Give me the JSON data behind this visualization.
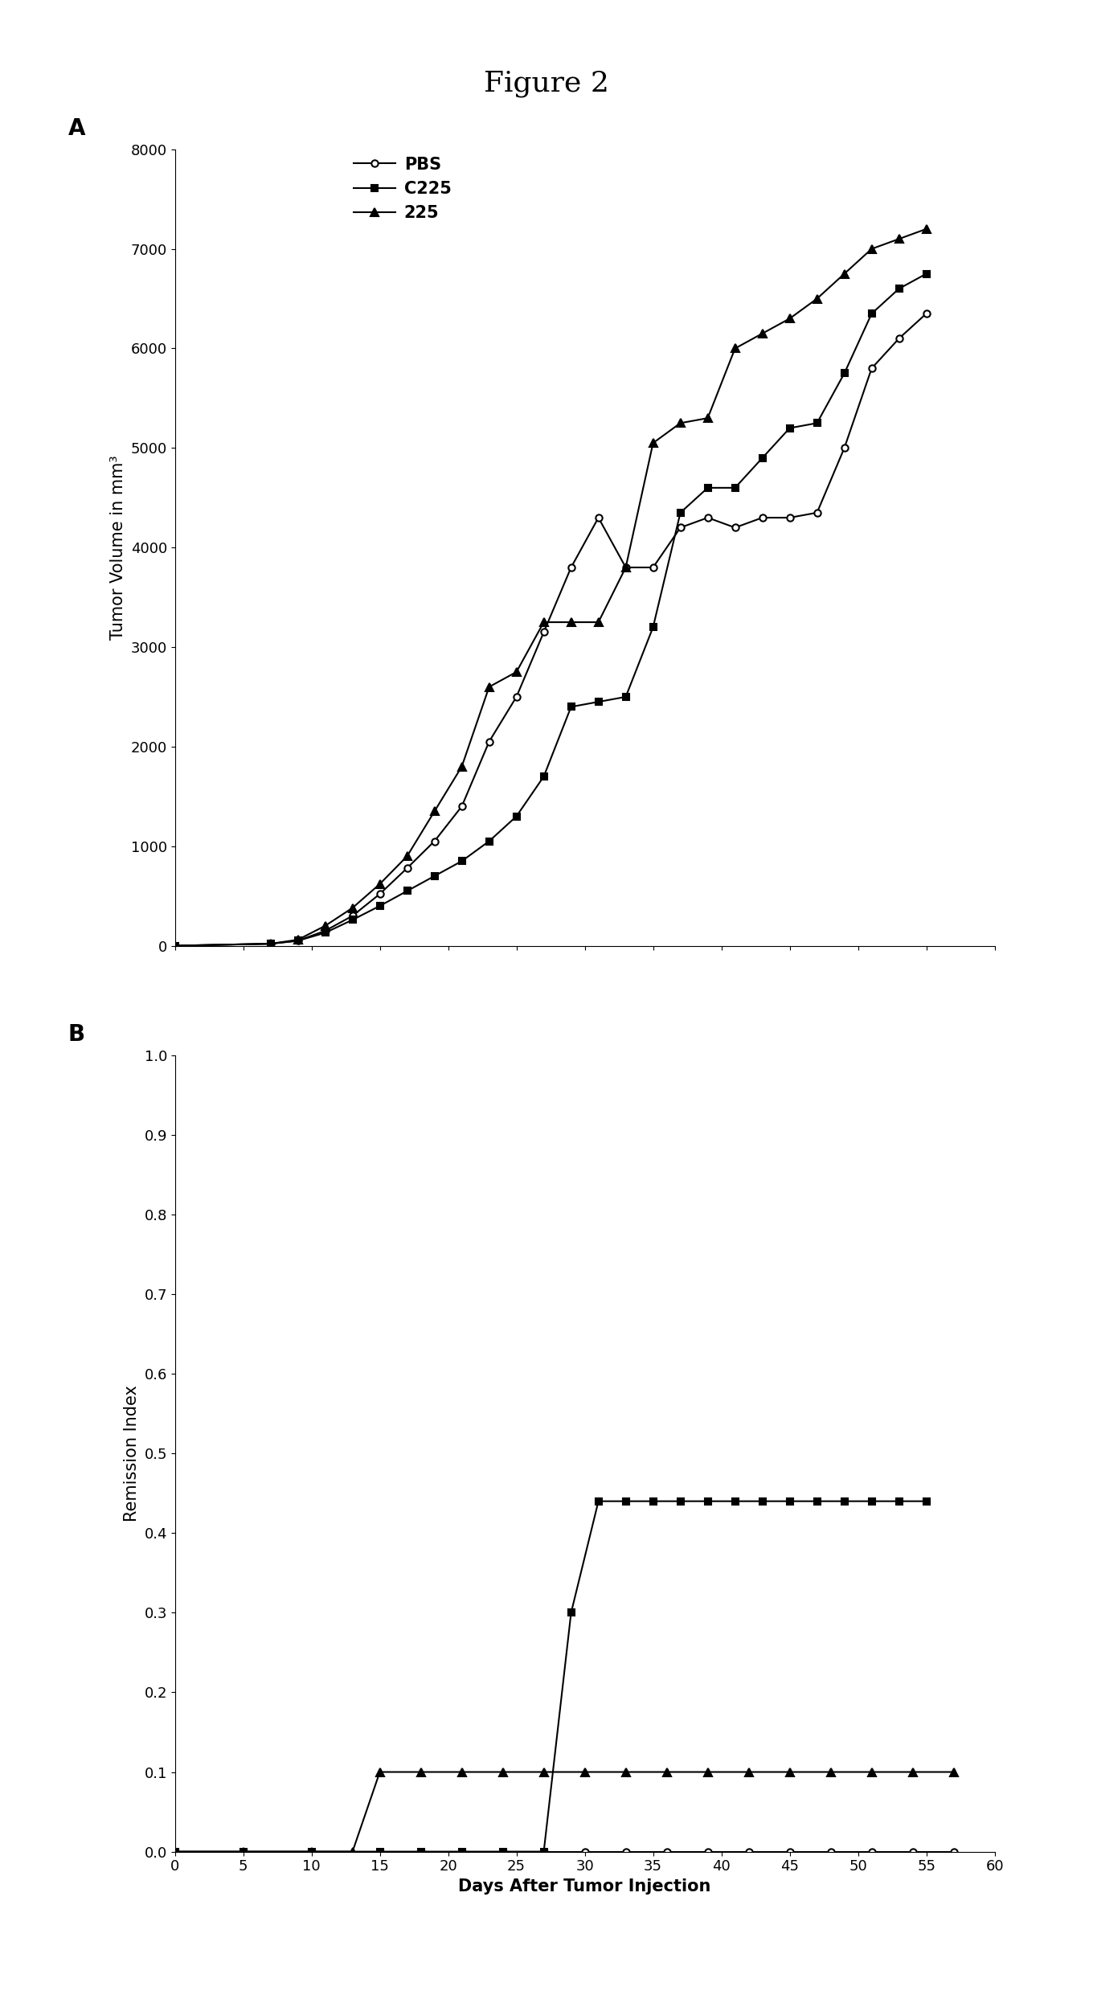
{
  "title": "Figure 2",
  "title_fontsize": 26,
  "title_fontfamily": "serif",
  "panel_A_label": "A",
  "panel_B_label": "B",
  "pbs_x": [
    0,
    7,
    9,
    11,
    13,
    15,
    17,
    19,
    21,
    23,
    25,
    27,
    29,
    31,
    33,
    35,
    37,
    39,
    41,
    43,
    45,
    47,
    49,
    51,
    53,
    55
  ],
  "pbs_y": [
    0,
    20,
    50,
    150,
    300,
    520,
    780,
    1050,
    1400,
    2050,
    2500,
    3150,
    3800,
    4300,
    3800,
    3800,
    4200,
    4300,
    4200,
    4300,
    4300,
    4350,
    5000,
    5800,
    6100,
    6350
  ],
  "c225_x": [
    0,
    7,
    9,
    11,
    13,
    15,
    17,
    19,
    21,
    23,
    25,
    27,
    29,
    31,
    33,
    35,
    37,
    39,
    41,
    43,
    45,
    47,
    49,
    51,
    53,
    55
  ],
  "c225_y": [
    0,
    20,
    50,
    130,
    260,
    400,
    550,
    700,
    850,
    1050,
    1300,
    1700,
    2400,
    2450,
    2500,
    3200,
    4350,
    4600,
    4600,
    4900,
    5200,
    5250,
    5750,
    6350,
    6600,
    6750
  ],
  "f225_x": [
    0,
    7,
    9,
    11,
    13,
    15,
    17,
    19,
    21,
    23,
    25,
    27,
    29,
    31,
    33,
    35,
    37,
    39,
    41,
    43,
    45,
    47,
    49,
    51,
    53,
    55
  ],
  "f225_y": [
    0,
    20,
    60,
    200,
    380,
    620,
    900,
    1350,
    1800,
    2600,
    2750,
    3250,
    3250,
    3250,
    3800,
    5050,
    5250,
    5300,
    6000,
    6150,
    6300,
    6500,
    6750,
    7000,
    7100,
    7200
  ],
  "pbs_ri_x": [
    0,
    5,
    10,
    15,
    18,
    21,
    24,
    27,
    30,
    33,
    36,
    39,
    42,
    45,
    48,
    51,
    54,
    57
  ],
  "pbs_ri_y": [
    0,
    0,
    0,
    0,
    0,
    0,
    0,
    0,
    0,
    0,
    0,
    0,
    0,
    0,
    0,
    0,
    0,
    0
  ],
  "c225_ri_x": [
    0,
    5,
    10,
    15,
    18,
    21,
    24,
    27,
    29,
    31,
    33,
    35,
    37,
    39,
    41,
    43,
    45,
    47,
    49,
    51,
    53,
    55
  ],
  "c225_ri_y": [
    0,
    0,
    0,
    0,
    0,
    0,
    0,
    0,
    0.3,
    0.44,
    0.44,
    0.44,
    0.44,
    0.44,
    0.44,
    0.44,
    0.44,
    0.44,
    0.44,
    0.44,
    0.44,
    0.44
  ],
  "f225_ri_x": [
    0,
    5,
    10,
    13,
    15,
    18,
    21,
    24,
    27,
    30,
    33,
    36,
    39,
    42,
    45,
    48,
    51,
    54,
    57
  ],
  "f225_ri_y": [
    0,
    0,
    0,
    0,
    0.1,
    0.1,
    0.1,
    0.1,
    0.1,
    0.1,
    0.1,
    0.1,
    0.1,
    0.1,
    0.1,
    0.1,
    0.1,
    0.1,
    0.1
  ],
  "ylabel_A": "Tumor Volume in mm³",
  "ylabel_B": "Remission Index",
  "xlabel": "Days After Tumor Injection",
  "ylim_A": [
    0,
    8000
  ],
  "yticks_A": [
    0,
    1000,
    2000,
    3000,
    4000,
    5000,
    6000,
    7000,
    8000
  ],
  "ylim_B": [
    0,
    1.0
  ],
  "yticks_B": [
    0.0,
    0.1,
    0.2,
    0.3,
    0.4,
    0.5,
    0.6,
    0.7,
    0.8,
    0.9,
    1.0
  ],
  "xlim": [
    0,
    60
  ],
  "xticks": [
    0,
    5,
    10,
    15,
    20,
    25,
    30,
    35,
    40,
    45,
    50,
    55,
    60
  ],
  "line_color": "#000000",
  "bg_color": "#ffffff",
  "legend_labels": [
    "PBS",
    "C225",
    "225"
  ],
  "legend_fontsize": 15,
  "axis_label_fontsize": 15,
  "tick_fontsize": 13,
  "panel_label_fontsize": 20
}
